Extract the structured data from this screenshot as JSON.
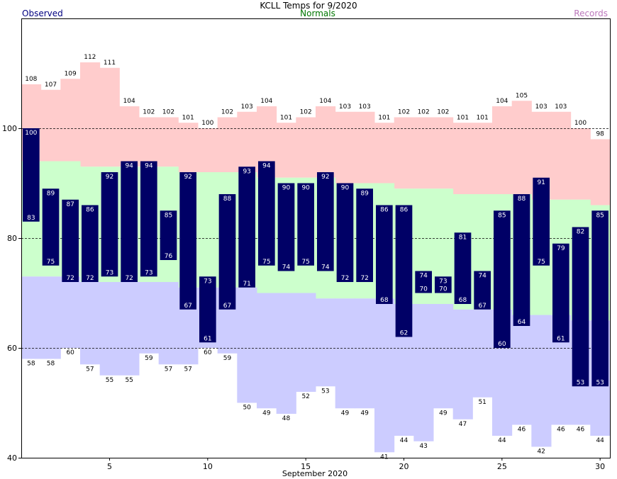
{
  "chart_data": {
    "type": "bar",
    "title": "KCLL Temps for 9/2020",
    "xlabel": "September 2020",
    "legend": {
      "observed": "Observed",
      "normals": "Normals",
      "records": "Records"
    },
    "colors": {
      "observed": "#000066",
      "normals": "#ccffcc",
      "records_high": "#ffcccc",
      "records_low": "#ccccff",
      "observed_legend": "#000080",
      "normals_legend": "#007700",
      "records_legend": "#bb77bb"
    },
    "ylim": [
      40,
      120
    ],
    "yticks": [
      40,
      60,
      80,
      100
    ],
    "xticks": [
      5,
      10,
      15,
      20,
      25,
      30
    ],
    "gridlines": [
      60,
      80,
      100
    ],
    "days": [
      1,
      2,
      3,
      4,
      5,
      6,
      7,
      8,
      9,
      10,
      11,
      12,
      13,
      14,
      15,
      16,
      17,
      18,
      19,
      20,
      21,
      22,
      23,
      24,
      25,
      26,
      27,
      28,
      29,
      30
    ],
    "observed_high": [
      100,
      89,
      87,
      86,
      92,
      94,
      94,
      85,
      92,
      73,
      88,
      93,
      94,
      90,
      90,
      92,
      90,
      89,
      86,
      86,
      74,
      73,
      81,
      74,
      85,
      88,
      91,
      79,
      82,
      85
    ],
    "observed_low": [
      83,
      75,
      72,
      72,
      73,
      72,
      73,
      76,
      67,
      61,
      67,
      71,
      75,
      74,
      75,
      74,
      72,
      72,
      68,
      62,
      70,
      70,
      68,
      67,
      60,
      64,
      75,
      61,
      53,
      53
    ],
    "normal_high": [
      94,
      94,
      94,
      93,
      93,
      93,
      93,
      93,
      92,
      92,
      92,
      92,
      91,
      91,
      91,
      91,
      90,
      90,
      90,
      89,
      89,
      89,
      88,
      88,
      88,
      88,
      87,
      87,
      87,
      86
    ],
    "normal_low": [
      73,
      73,
      73,
      72,
      72,
      72,
      72,
      72,
      71,
      71,
      71,
      71,
      70,
      70,
      70,
      69,
      69,
      69,
      69,
      68,
      68,
      68,
      67,
      67,
      67,
      66,
      66,
      66,
      65,
      65
    ],
    "record_high": [
      108,
      107,
      109,
      112,
      111,
      104,
      102,
      102,
      101,
      100,
      102,
      103,
      104,
      101,
      102,
      104,
      103,
      103,
      101,
      102,
      102,
      102,
      101,
      101,
      104,
      105,
      103,
      103,
      100,
      98
    ],
    "record_low": [
      58,
      58,
      60,
      57,
      55,
      55,
      59,
      57,
      57,
      60,
      59,
      50,
      49,
      48,
      52,
      53,
      49,
      49,
      41,
      44,
      43,
      49,
      47,
      51,
      44,
      46,
      42,
      46,
      46,
      44
    ]
  }
}
